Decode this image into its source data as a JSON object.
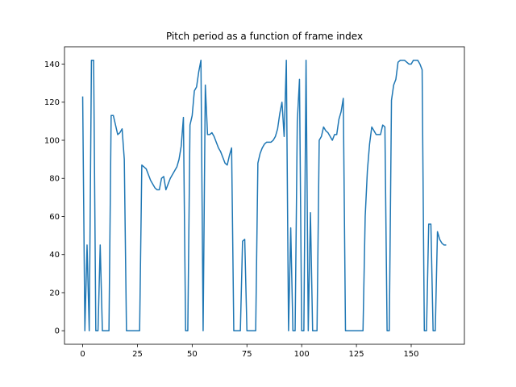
{
  "chart_data": {
    "type": "line",
    "title": "Pitch period as a function of frame index",
    "x": [
      0,
      1,
      2,
      3,
      4,
      5,
      6,
      7,
      8,
      9,
      10,
      11,
      12,
      13,
      14,
      15,
      16,
      17,
      18,
      19,
      20,
      21,
      22,
      23,
      24,
      25,
      26,
      27,
      28,
      29,
      30,
      31,
      32,
      33,
      34,
      35,
      36,
      37,
      38,
      39,
      40,
      41,
      42,
      43,
      44,
      45,
      46,
      47,
      48,
      49,
      50,
      51,
      52,
      53,
      54,
      55,
      56,
      57,
      58,
      59,
      60,
      61,
      62,
      63,
      64,
      65,
      66,
      67,
      68,
      69,
      70,
      71,
      72,
      73,
      74,
      75,
      76,
      77,
      78,
      79,
      80,
      81,
      82,
      83,
      84,
      85,
      86,
      87,
      88,
      89,
      90,
      91,
      92,
      93,
      94,
      95,
      96,
      97,
      98,
      99,
      100,
      101,
      102,
      103,
      104,
      105,
      106,
      107,
      108,
      109,
      110,
      111,
      112,
      113,
      114,
      115,
      116,
      117,
      118,
      119,
      120,
      121,
      122,
      123,
      124,
      125,
      126,
      127,
      128,
      129,
      130,
      131,
      132,
      133,
      134,
      135,
      136,
      137,
      138,
      139,
      140,
      141,
      142,
      143,
      144,
      145,
      146,
      147,
      148,
      149,
      150,
      151,
      152,
      153,
      154,
      155,
      156,
      157,
      158,
      159,
      160,
      161,
      162,
      163,
      164,
      165,
      166
    ],
    "values": [
      123,
      0,
      45,
      0,
      142,
      142,
      0,
      0,
      45,
      0,
      0,
      0,
      0,
      113,
      113,
      108,
      103,
      104,
      106,
      90,
      0,
      0,
      0,
      0,
      0,
      0,
      0,
      87,
      86,
      85,
      82,
      79,
      77,
      75,
      74,
      74,
      80,
      81,
      74,
      77,
      80,
      82,
      84,
      86,
      90,
      97,
      112,
      0,
      0,
      108,
      113,
      126,
      128,
      136,
      142,
      0,
      129,
      103,
      103,
      104,
      102,
      99,
      96,
      94,
      91,
      88,
      87,
      92,
      96,
      0,
      0,
      0,
      0,
      47,
      48,
      0,
      0,
      0,
      0,
      0,
      88,
      93,
      96,
      98,
      99,
      99,
      99,
      100,
      102,
      106,
      114,
      120,
      102,
      142,
      0,
      54,
      0,
      0,
      110,
      132,
      0,
      0,
      142,
      0,
      62,
      0,
      0,
      0,
      100,
      102,
      107,
      105,
      104,
      102,
      100,
      103,
      103,
      111,
      115,
      122,
      0,
      0,
      0,
      0,
      0,
      0,
      0,
      0,
      0,
      60,
      84,
      98,
      107,
      105,
      103,
      103,
      103,
      108,
      107,
      0,
      0,
      121,
      129,
      132,
      141,
      142,
      142,
      142,
      141,
      140,
      140,
      142,
      142,
      142,
      140,
      137,
      0,
      0,
      56,
      56,
      0,
      0,
      52,
      48,
      46,
      45,
      45
    ],
    "color": "#1f77b4",
    "xlim": [
      -8.3,
      174.3
    ],
    "ylim": [
      -7.1,
      149.1
    ],
    "xticks": [
      0,
      25,
      50,
      75,
      100,
      125,
      150
    ],
    "yticks": [
      0,
      20,
      40,
      60,
      80,
      100,
      120,
      140
    ]
  }
}
